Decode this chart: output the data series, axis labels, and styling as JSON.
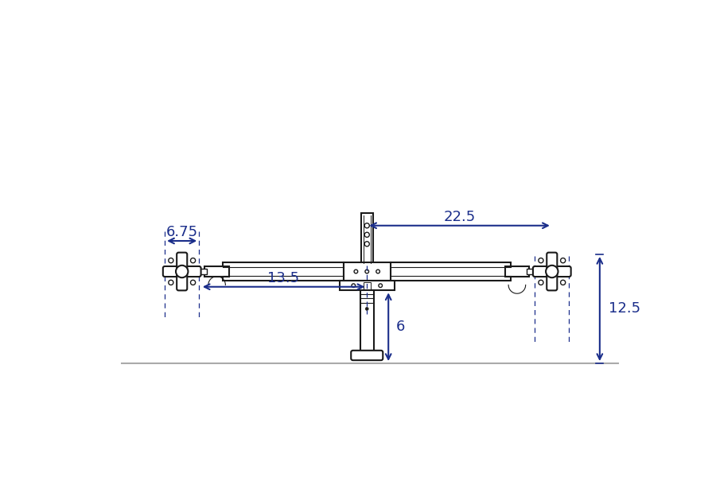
{
  "bg_color": "#ffffff",
  "line_color": "#1a1a1a",
  "dim_color": "#1a2d8a",
  "desk_line_color": "#aaaaaa",
  "fig_width": 9.0,
  "fig_height": 6.0,
  "dpi": 100,
  "dim_675_label": "6.75",
  "dim_135_label": "13.5",
  "dim_225_label": "22.5",
  "dim_6_label": "6",
  "dim_125_label": "12.5"
}
